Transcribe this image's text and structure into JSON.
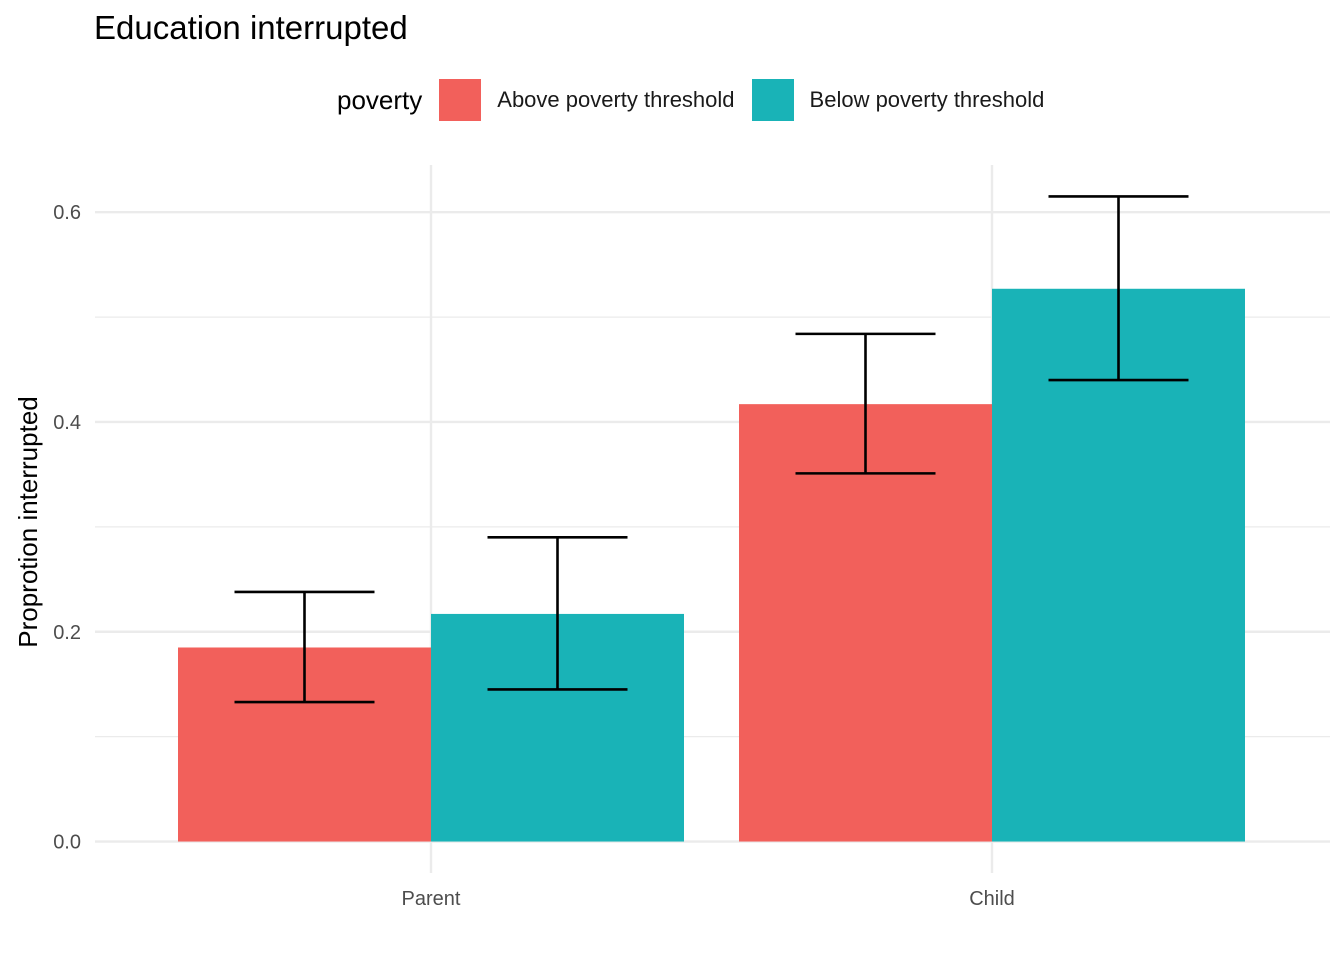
{
  "chart_data": {
    "type": "bar",
    "title": "Education interrupted",
    "xlabel": "",
    "ylabel": "Proprotion interrupted",
    "categories": [
      "Parent",
      "Child"
    ],
    "legend": {
      "title": "poverty",
      "placement": "top"
    },
    "series": [
      {
        "name": "Above poverty threshold",
        "color": "#F2605B",
        "values": [
          0.185,
          0.417
        ],
        "error_low": [
          0.133,
          0.351
        ],
        "error_high": [
          0.238,
          0.484
        ]
      },
      {
        "name": "Below poverty threshold",
        "color": "#19B3B7",
        "values": [
          0.217,
          0.527
        ],
        "error_low": [
          0.145,
          0.44
        ],
        "error_high": [
          0.29,
          0.615
        ]
      }
    ],
    "ylim": [
      -0.03,
      0.645
    ],
    "yticks": [
      {
        "value": 0.0,
        "label": "0.0"
      },
      {
        "value": 0.2,
        "label": "0.2"
      },
      {
        "value": 0.4,
        "label": "0.4"
      },
      {
        "value": 0.6,
        "label": "0.6"
      }
    ],
    "minor_yticks": [
      0.1,
      0.3,
      0.5
    ],
    "grid": true
  }
}
